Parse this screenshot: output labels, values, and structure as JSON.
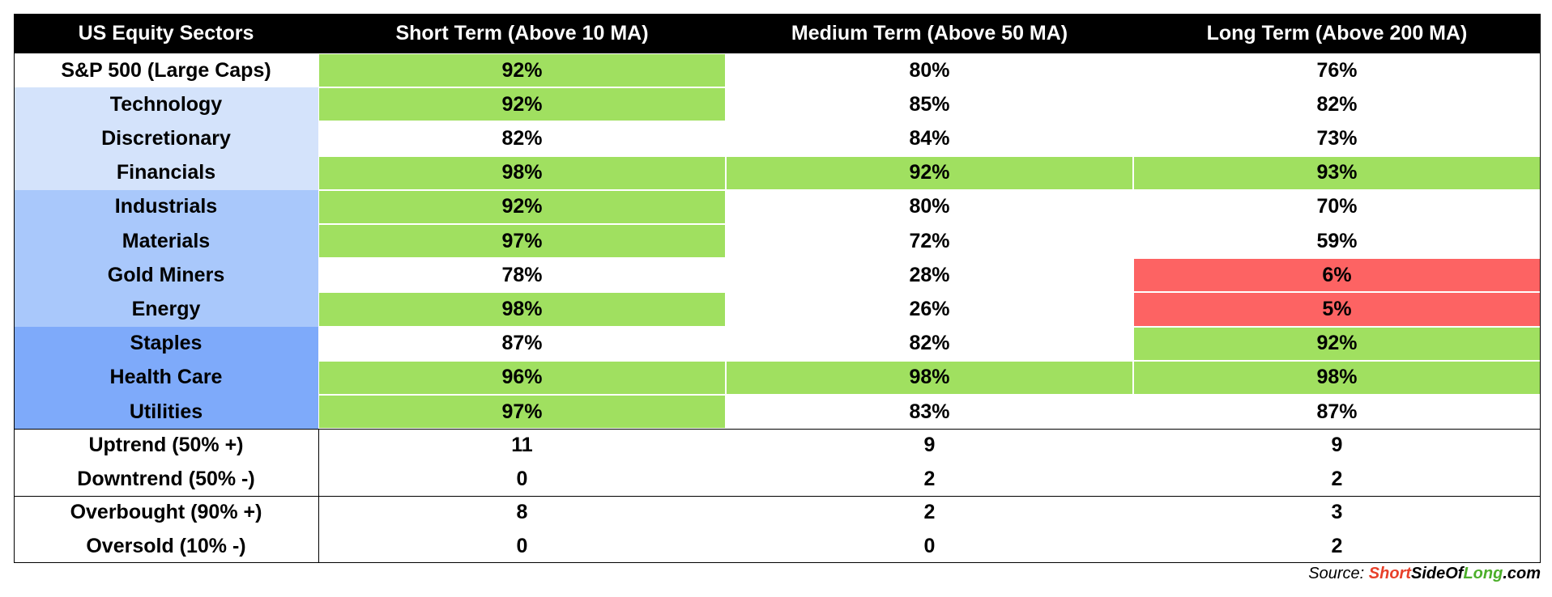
{
  "table": {
    "header": [
      "US Equity Sectors",
      "Short Term (Above 10 MA)",
      "Medium Term (Above 50 MA)",
      "Long Term (Above 200 MA)"
    ],
    "sectors": [
      {
        "label": "S&P 500 (Large Caps)",
        "label_fill": "#ffffff",
        "cells": [
          "92%",
          "80%",
          "76%"
        ],
        "fills": [
          "#a0e060",
          "#ffffff",
          "#ffffff"
        ]
      },
      {
        "label": "Technology",
        "label_fill": "#d4e3fb",
        "cells": [
          "92%",
          "85%",
          "82%"
        ],
        "fills": [
          "#a0e060",
          "#ffffff",
          "#ffffff"
        ]
      },
      {
        "label": "Discretionary",
        "label_fill": "#d4e3fb",
        "cells": [
          "82%",
          "84%",
          "73%"
        ],
        "fills": [
          "#ffffff",
          "#ffffff",
          "#ffffff"
        ]
      },
      {
        "label": "Financials",
        "label_fill": "#d4e3fb",
        "cells": [
          "98%",
          "92%",
          "93%"
        ],
        "fills": [
          "#a0e060",
          "#a0e060",
          "#a0e060"
        ]
      },
      {
        "label": "Industrials",
        "label_fill": "#a9c8fb",
        "cells": [
          "92%",
          "80%",
          "70%"
        ],
        "fills": [
          "#a0e060",
          "#ffffff",
          "#ffffff"
        ]
      },
      {
        "label": "Materials",
        "label_fill": "#a9c8fb",
        "cells": [
          "97%",
          "72%",
          "59%"
        ],
        "fills": [
          "#a0e060",
          "#ffffff",
          "#ffffff"
        ]
      },
      {
        "label": "Gold Miners",
        "label_fill": "#a9c8fb",
        "cells": [
          "78%",
          "28%",
          "6%"
        ],
        "fills": [
          "#ffffff",
          "#ffffff",
          "#fd6363"
        ]
      },
      {
        "label": "Energy",
        "label_fill": "#a9c8fb",
        "cells": [
          "98%",
          "26%",
          "5%"
        ],
        "fills": [
          "#a0e060",
          "#ffffff",
          "#fd6363"
        ]
      },
      {
        "label": "Staples",
        "label_fill": "#7eaafa",
        "cells": [
          "87%",
          "82%",
          "92%"
        ],
        "fills": [
          "#ffffff",
          "#ffffff",
          "#a0e060"
        ]
      },
      {
        "label": "Health Care",
        "label_fill": "#7eaafa",
        "cells": [
          "96%",
          "98%",
          "98%"
        ],
        "fills": [
          "#a0e060",
          "#a0e060",
          "#a0e060"
        ]
      },
      {
        "label": "Utilities",
        "label_fill": "#7eaafa",
        "cells": [
          "97%",
          "83%",
          "87%"
        ],
        "fills": [
          "#a0e060",
          "#ffffff",
          "#ffffff"
        ]
      }
    ],
    "summary_groups": [
      [
        {
          "label": "Uptrend (50% +)",
          "cells": [
            "11",
            "9",
            "9"
          ]
        },
        {
          "label": "Downtrend (50% -)",
          "cells": [
            "0",
            "2",
            "2"
          ]
        }
      ],
      [
        {
          "label": "Overbought (90% +)",
          "cells": [
            "8",
            "2",
            "3"
          ]
        },
        {
          "label": "Oversold (10% -)",
          "cells": [
            "0",
            "0",
            "2"
          ]
        }
      ]
    ]
  },
  "source": {
    "label": "Source:",
    "parts": [
      {
        "text": "Short",
        "color": "#e8402a"
      },
      {
        "text": "SideOf",
        "color": "#000000"
      },
      {
        "text": "Long",
        "color": "#4caf2a"
      },
      {
        "text": ".com",
        "color": "#000000"
      }
    ]
  }
}
